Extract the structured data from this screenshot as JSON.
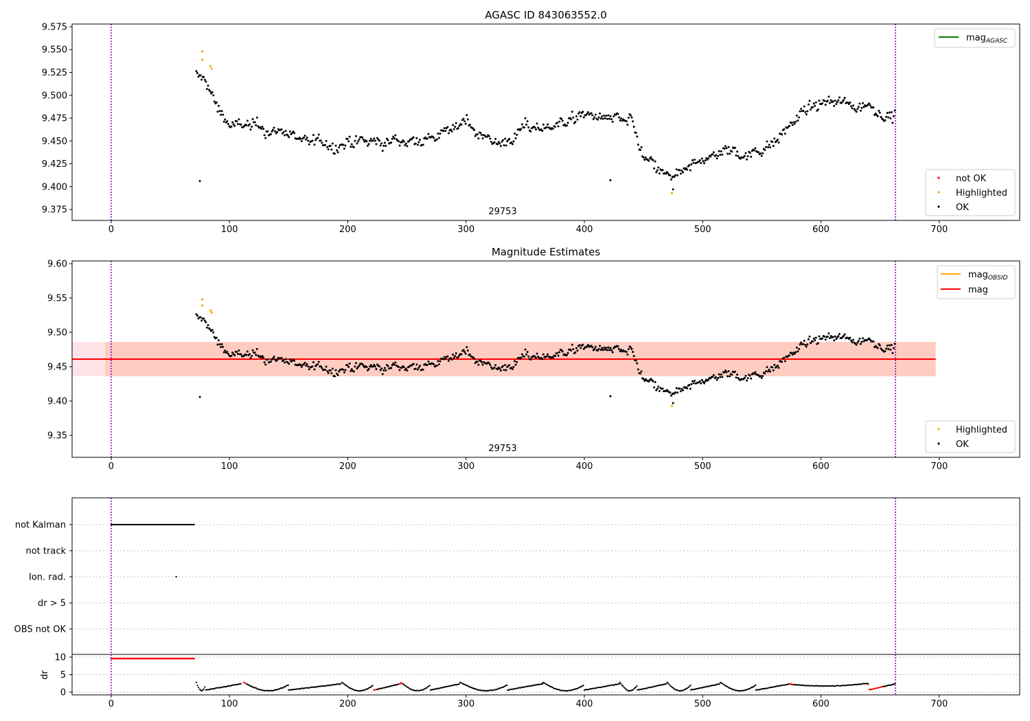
{
  "colors": {
    "ok": "#000000",
    "highlighted": "#ffa500",
    "not_ok": "#ff0000",
    "vline": "#7f00bf",
    "mag": "#ff0000",
    "mag_obsid": "#ffa500",
    "mag_agasc": "#008000",
    "band_outer": "#ffc0cb",
    "band_inner": "#ffa07a"
  },
  "chart_data": [
    {
      "type": "scatter",
      "title": "AGASC ID 843063552.0",
      "xlim": [
        -33,
        768
      ],
      "ylim": [
        9.363,
        9.578
      ],
      "xticks": [
        0,
        100,
        200,
        300,
        400,
        500,
        600,
        700
      ],
      "yticks": [
        "9.375",
        "9.400",
        "9.425",
        "9.450",
        "9.475",
        "9.500",
        "9.525",
        "9.550",
        "9.575"
      ],
      "obsid_label": "29753",
      "vlines": [
        0,
        663
      ],
      "legend_upper": [
        {
          "label": "mag",
          "sub": "AGASC",
          "color": "#008000"
        }
      ],
      "legend_lower": [
        {
          "label": "not OK",
          "color": "#ff0000"
        },
        {
          "label": "Highlighted",
          "color": "#ffa500"
        },
        {
          "label": "OK",
          "color": "#000000"
        }
      ],
      "mag_trend": [
        [
          72,
          9.522
        ],
        [
          80,
          9.515
        ],
        [
          90,
          9.487
        ],
        [
          100,
          9.468
        ],
        [
          120,
          9.465
        ],
        [
          150,
          9.458
        ],
        [
          180,
          9.445
        ],
        [
          200,
          9.447
        ],
        [
          230,
          9.448
        ],
        [
          260,
          9.452
        ],
        [
          290,
          9.46
        ],
        [
          300,
          9.476
        ],
        [
          310,
          9.46
        ],
        [
          330,
          9.446
        ],
        [
          350,
          9.463
        ],
        [
          380,
          9.47
        ],
        [
          400,
          9.478
        ],
        [
          420,
          9.475
        ],
        [
          440,
          9.47
        ],
        [
          450,
          9.43
        ],
        [
          470,
          9.41
        ],
        [
          480,
          9.41
        ],
        [
          500,
          9.43
        ],
        [
          520,
          9.44
        ],
        [
          540,
          9.435
        ],
        [
          560,
          9.45
        ],
        [
          580,
          9.478
        ],
        [
          600,
          9.49
        ],
        [
          620,
          9.493
        ],
        [
          640,
          9.488
        ],
        [
          663,
          9.478
        ]
      ],
      "outliers": [
        [
          75,
          9.406
        ],
        [
          422,
          9.407
        ],
        [
          475,
          9.397
        ]
      ],
      "highlighted": [
        [
          77,
          9.548
        ],
        [
          77,
          9.539
        ],
        [
          84,
          9.532
        ],
        [
          85,
          9.529
        ],
        [
          474,
          9.393
        ]
      ]
    },
    {
      "type": "scatter",
      "title": "Magnitude Estimates",
      "xlim": [
        -33,
        768
      ],
      "ylim": [
        9.318,
        9.604
      ],
      "xticks": [
        0,
        100,
        200,
        300,
        400,
        500,
        600,
        700
      ],
      "yticks": [
        "9.35",
        "9.40",
        "9.45",
        "9.50",
        "9.55",
        "9.60"
      ],
      "obsid_label": "29753",
      "vlines": [
        0,
        663
      ],
      "mag_line": 9.461,
      "band_outer": [
        -33,
        697,
        9.436,
        9.486
      ],
      "band_inner": [
        -5,
        697,
        9.436,
        9.486
      ],
      "legend_upper": [
        {
          "label": "mag",
          "sub": "OBSID",
          "color": "#ffa500"
        },
        {
          "label": "mag",
          "sub": "",
          "color": "#ff0000"
        }
      ],
      "legend_lower": [
        {
          "label": "Highlighted",
          "color": "#ffa500"
        },
        {
          "label": "OK",
          "color": "#000000"
        }
      ]
    },
    {
      "type": "scatter",
      "title": "",
      "xlim": [
        -33,
        768
      ],
      "categories": [
        "not Kalman",
        "not track",
        "Ion. rad.",
        "dr > 5",
        "OBS not OK"
      ],
      "flags": {
        "not_kalman": [
          0,
          71
        ],
        "ion_rad": [
          55
        ]
      },
      "dr_ylabel": "dr",
      "dr_ylim": [
        0,
        10
      ],
      "dr_yticks": [
        "0",
        "5",
        "10"
      ],
      "xticks": [
        0,
        100,
        200,
        300,
        400,
        500,
        600,
        700
      ],
      "dr_high": {
        "x": [
          0,
          71
        ],
        "value": 9.6
      },
      "vlines": [
        0,
        663
      ]
    }
  ]
}
